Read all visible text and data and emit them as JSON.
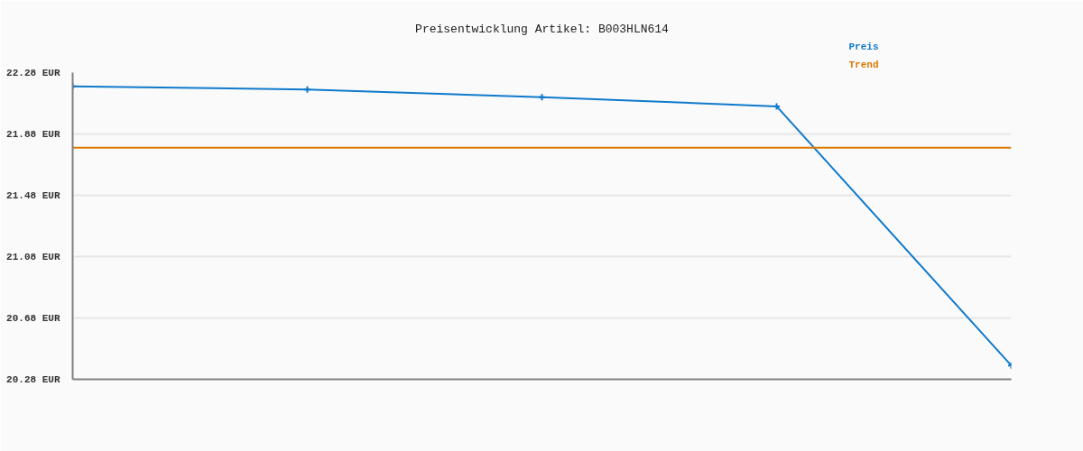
{
  "chart_data": {
    "type": "line",
    "title": "Preisentwicklung Artikel: B003HLN614",
    "categories": [
      null,
      null,
      null,
      null,
      null
    ],
    "series": [
      {
        "name": "Preis",
        "color": "#0f7acb",
        "values": [
          22.19,
          22.17,
          22.12,
          22.06,
          20.37
        ],
        "marker": "cross"
      },
      {
        "name": "Trend",
        "type": "line",
        "color": "#dd7700",
        "values": [
          21.79,
          21.79,
          21.79,
          21.79,
          21.79
        ],
        "marker": "none"
      }
    ],
    "ylim": [
      20.28,
      22.28
    ],
    "yticks": [
      {
        "value": 20.28,
        "label": "20.28 EUR"
      },
      {
        "value": 20.68,
        "label": "20.68 EUR"
      },
      {
        "value": 21.08,
        "label": "21.08 EUR"
      },
      {
        "value": 21.48,
        "label": "21.48 EUR"
      },
      {
        "value": 21.88,
        "label": "21.88 EUR"
      },
      {
        "value": 22.28,
        "label": "22.28 EUR"
      }
    ],
    "grid": "y",
    "tick_labels": "y",
    "line_style": "solid"
  }
}
